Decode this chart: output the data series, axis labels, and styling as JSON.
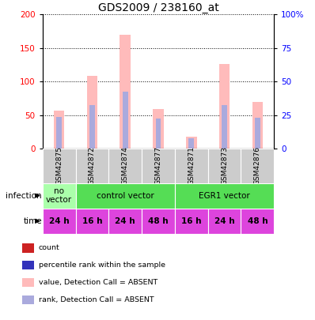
{
  "title": "GDS2009 / 238160_at",
  "samples": [
    "GSM42875",
    "GSM42872",
    "GSM42874",
    "GSM42877",
    "GSM42871",
    "GSM42873",
    "GSM42876"
  ],
  "bar_values_pink": [
    57,
    108,
    170,
    59,
    18,
    126,
    70
  ],
  "bar_values_blue": [
    47,
    65,
    85,
    45,
    15,
    65,
    46
  ],
  "ylim_left": [
    0,
    200
  ],
  "ylim_right": [
    0,
    100
  ],
  "yticks_left": [
    0,
    50,
    100,
    150,
    200
  ],
  "yticks_right": [
    0,
    25,
    50,
    75,
    100
  ],
  "ytick_labels_right": [
    "0",
    "25",
    "50",
    "75",
    "100%"
  ],
  "infection_data": [
    {
      "start": 0,
      "end": 1,
      "color": "#aaffaa",
      "label": "no\nvector"
    },
    {
      "start": 1,
      "end": 4,
      "color": "#55dd55",
      "label": "control vector"
    },
    {
      "start": 4,
      "end": 7,
      "color": "#55dd55",
      "label": "EGR1 vector"
    }
  ],
  "time_labels": [
    "24 h",
    "16 h",
    "24 h",
    "48 h",
    "16 h",
    "24 h",
    "48 h"
  ],
  "time_color": "#dd44dd",
  "color_pink": "#ffbbbb",
  "color_light_blue": "#aaaadd",
  "color_red": "#cc2222",
  "color_dark_blue": "#3333bb",
  "sample_bg_color": "#cccccc",
  "legend_items": [
    {
      "color": "#cc2222",
      "label": "count"
    },
    {
      "color": "#3333bb",
      "label": "percentile rank within the sample"
    },
    {
      "color": "#ffbbbb",
      "label": "value, Detection Call = ABSENT"
    },
    {
      "color": "#aaaadd",
      "label": "rank, Detection Call = ABSENT"
    }
  ]
}
